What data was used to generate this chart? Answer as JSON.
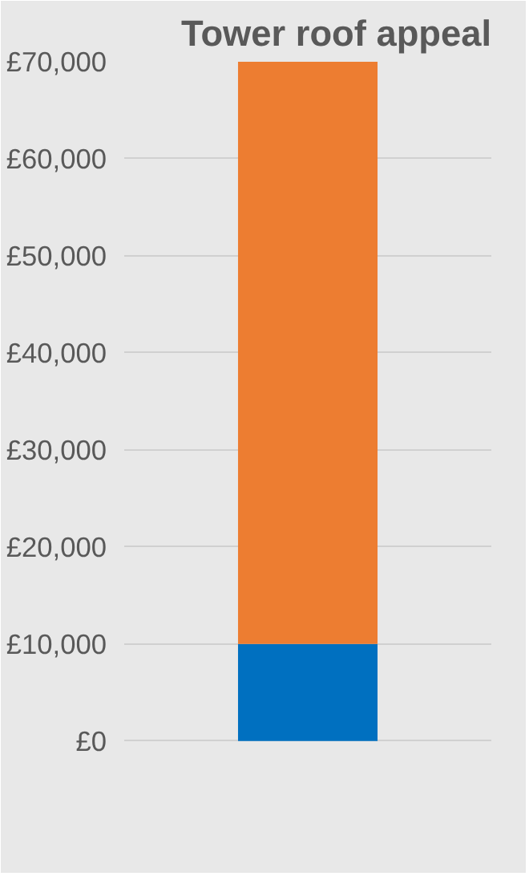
{
  "chart_data": {
    "type": "bar",
    "title": "Tower roof appeal",
    "stacked": true,
    "categories": [
      null
    ],
    "series": [
      {
        "color": "#0070c0",
        "values": [
          10000
        ]
      },
      {
        "color": "#ed7d31",
        "values": [
          60000
        ]
      }
    ],
    "ylim": [
      -12000,
      70000
    ],
    "yticks": [
      {
        "value": 0,
        "label": "£0"
      },
      {
        "value": 10000,
        "label": "£10,000"
      },
      {
        "value": 20000,
        "label": "£20,000"
      },
      {
        "value": 30000,
        "label": "£30,000"
      },
      {
        "value": 40000,
        "label": "£40,000"
      },
      {
        "value": 50000,
        "label": "£50,000"
      },
      {
        "value": 60000,
        "label": "£60,000"
      },
      {
        "value": 70000,
        "label": "£70,000"
      }
    ],
    "grid": "y",
    "tick_labels": "y"
  }
}
